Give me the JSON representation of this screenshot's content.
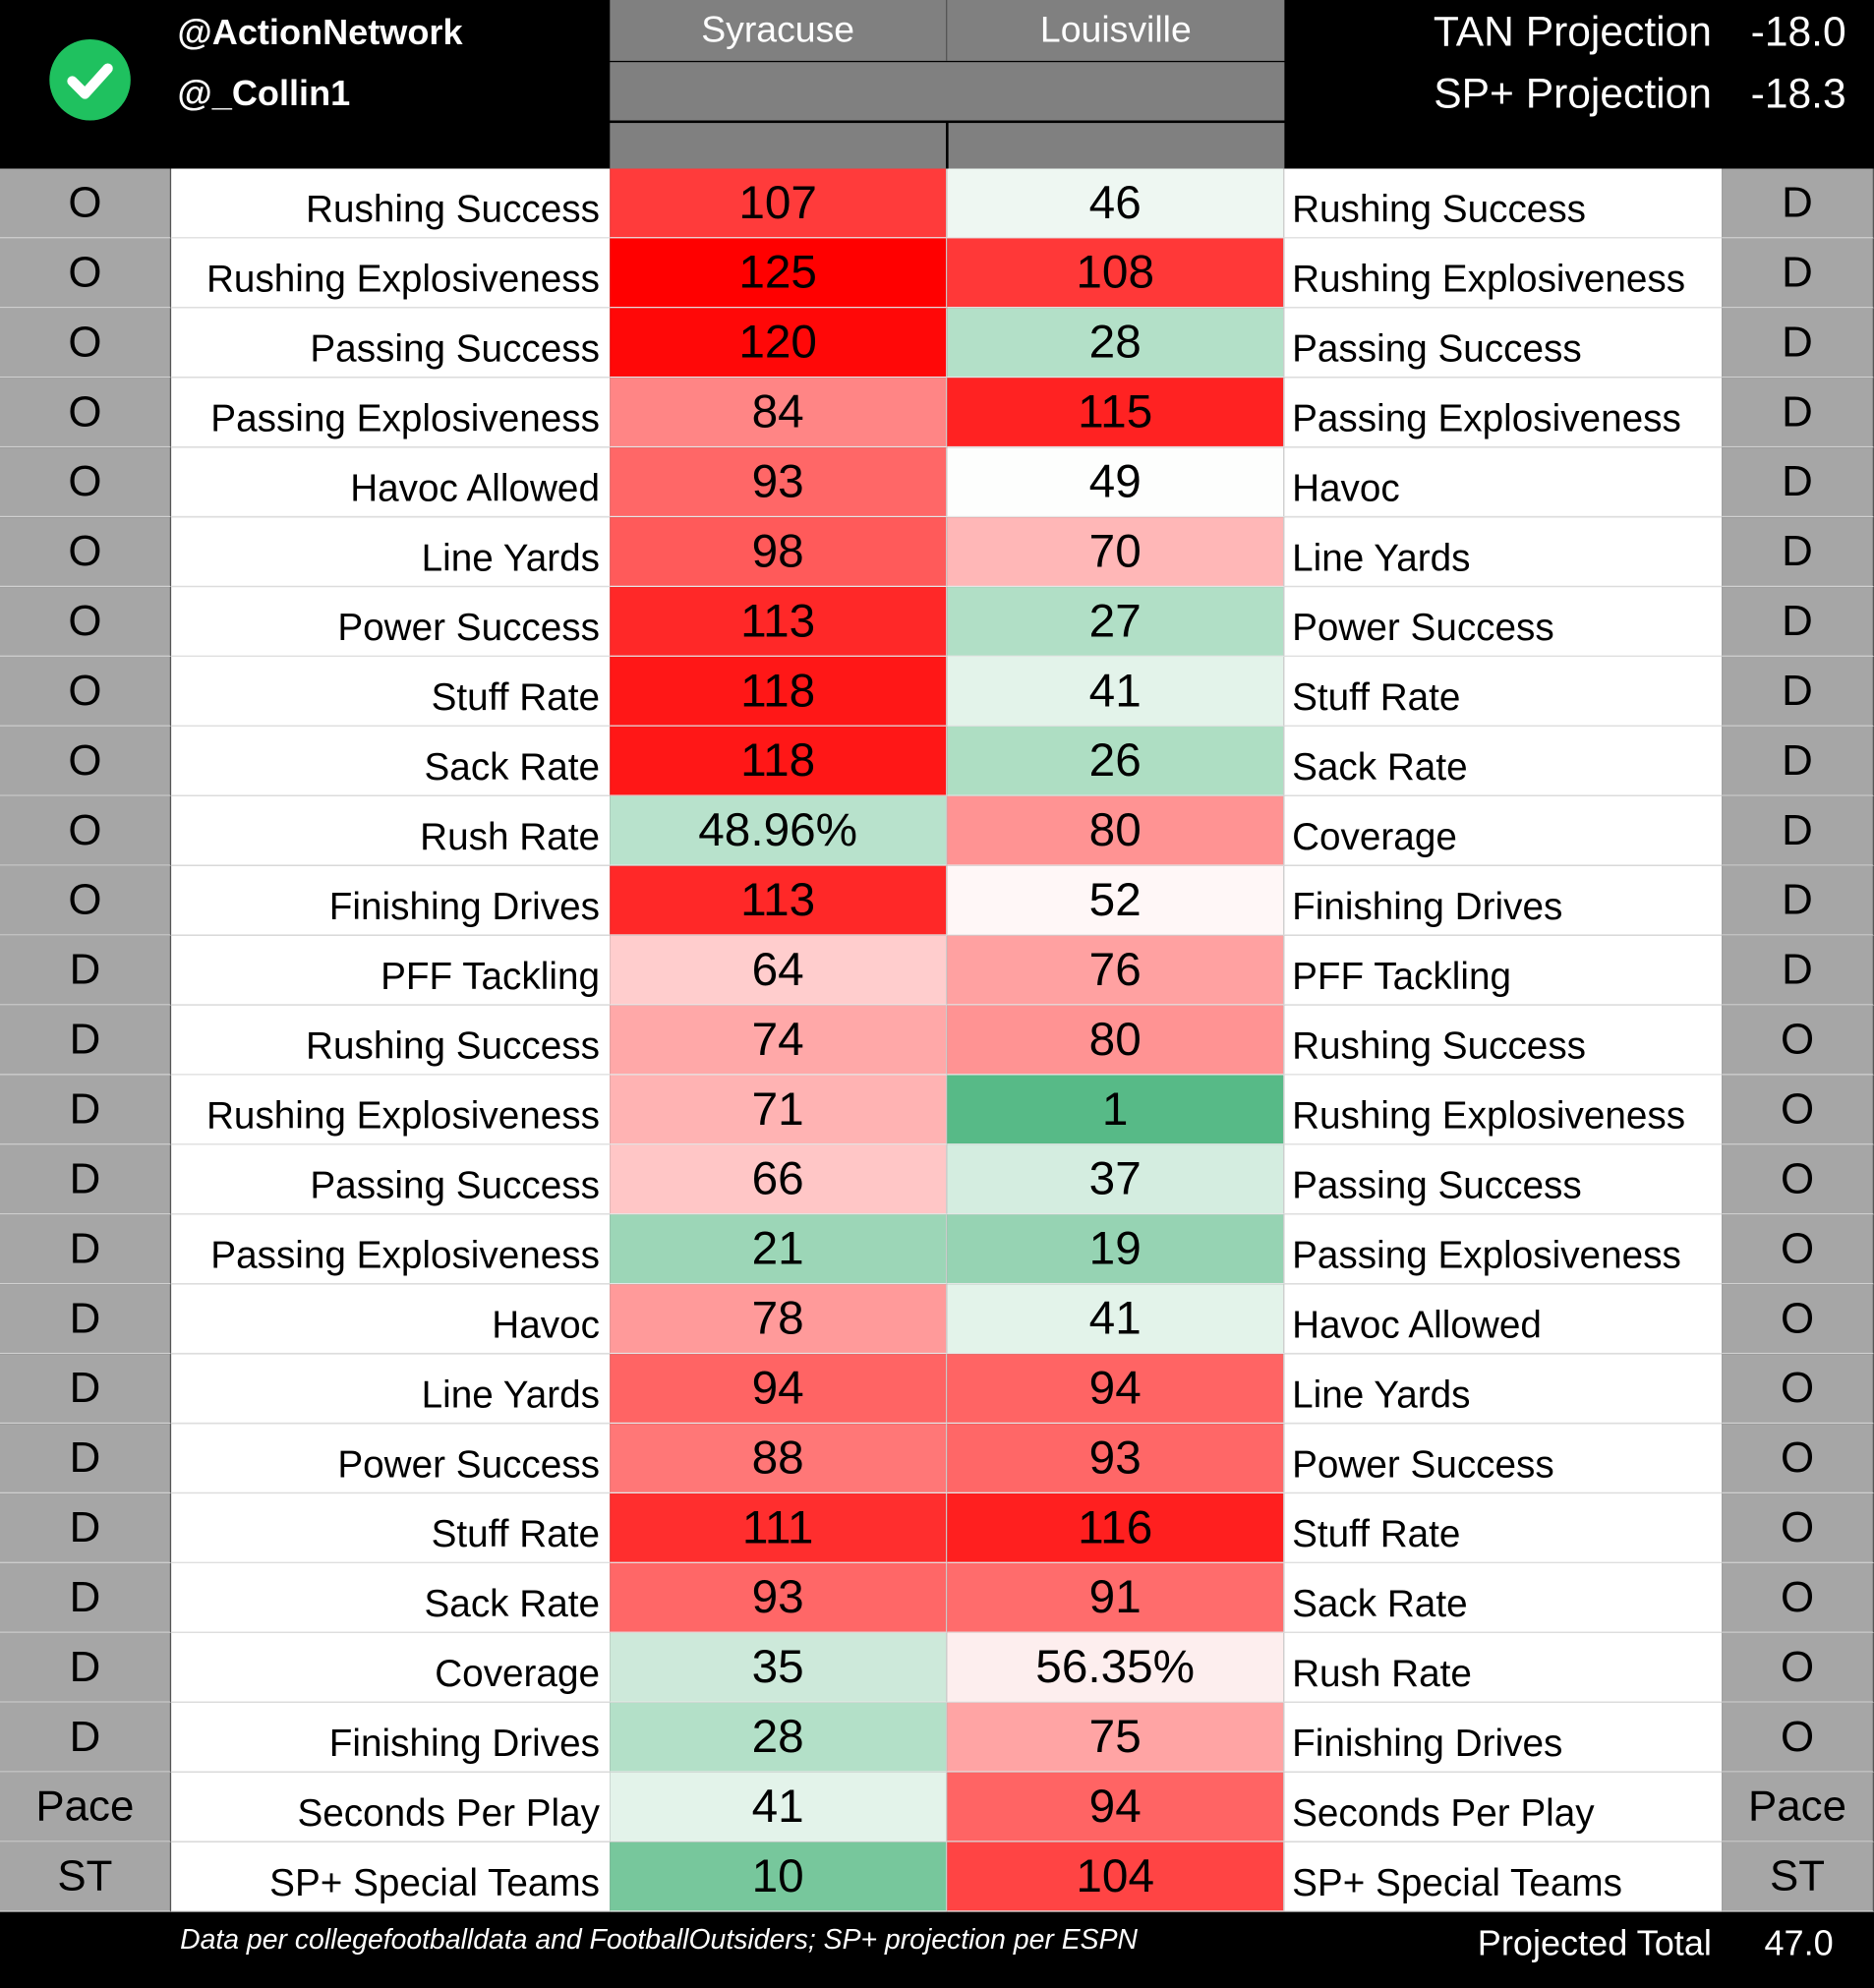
{
  "header": {
    "handles": [
      "@ActionNetwork",
      "@_Collin1"
    ],
    "teams": [
      "Syracuse",
      "Louisville"
    ],
    "projections": [
      {
        "label": "TAN Projection",
        "value": "-18.0"
      },
      {
        "label": "SP+ Projection",
        "value": "-18.3"
      }
    ]
  },
  "rows": [
    {
      "left_side": "O",
      "left_label": "Rushing Success",
      "syracuse": "107",
      "louisville": "46",
      "right_label": "Rushing Success",
      "right_side": "D",
      "colors": [
        "#ff3b3b",
        "#eef7f2"
      ]
    },
    {
      "left_side": "O",
      "left_label": "Rushing Explosiveness",
      "syracuse": "125",
      "louisville": "108",
      "right_label": "Rushing Explosiveness",
      "right_side": "D",
      "colors": [
        "#ff0000",
        "#ff3838"
      ]
    },
    {
      "left_side": "O",
      "left_label": "Passing Success",
      "syracuse": "120",
      "louisville": "28",
      "right_label": "Passing Success",
      "right_side": "D",
      "colors": [
        "#ff0808",
        "#b3e0c8"
      ]
    },
    {
      "left_side": "O",
      "left_label": "Passing Explosiveness",
      "syracuse": "84",
      "louisville": "115",
      "right_label": "Passing Explosiveness",
      "right_side": "D",
      "colors": [
        "#ff8585",
        "#ff2222"
      ]
    },
    {
      "left_side": "O",
      "left_label": "Havoc Allowed",
      "syracuse": "93",
      "louisville": "49",
      "right_label": "Havoc",
      "right_side": "D",
      "colors": [
        "#ff6767",
        "#fdfefd"
      ]
    },
    {
      "left_side": "O",
      "left_label": "Line Yards",
      "syracuse": "98",
      "louisville": "70",
      "right_label": "Line Yards",
      "right_side": "D",
      "colors": [
        "#ff5a5a",
        "#ffb7b7"
      ]
    },
    {
      "left_side": "O",
      "left_label": "Power Success",
      "syracuse": "113",
      "louisville": "27",
      "right_label": "Power Success",
      "right_side": "D",
      "colors": [
        "#ff2828",
        "#b1dfc6"
      ]
    },
    {
      "left_side": "O",
      "left_label": "Stuff Rate",
      "syracuse": "118",
      "louisville": "41",
      "right_label": "Stuff Rate",
      "right_side": "D",
      "colors": [
        "#ff1717",
        "#e3f3ea"
      ]
    },
    {
      "left_side": "O",
      "left_label": "Sack Rate",
      "syracuse": "118",
      "louisville": "26",
      "right_label": "Sack Rate",
      "right_side": "D",
      "colors": [
        "#ff1717",
        "#aedec3"
      ]
    },
    {
      "left_side": "O",
      "left_label": "Rush Rate",
      "syracuse": "48.96%",
      "louisville": "80",
      "right_label": "Coverage",
      "right_side": "D",
      "colors": [
        "#b8e2cc",
        "#ff9393"
      ]
    },
    {
      "left_side": "O",
      "left_label": "Finishing Drives",
      "syracuse": "113",
      "louisville": "52",
      "right_label": "Finishing Drives",
      "right_side": "D",
      "colors": [
        "#ff2828",
        "#fff7f7"
      ]
    },
    {
      "left_side": "D",
      "left_label": "PFF Tackling",
      "syracuse": "64",
      "louisville": "76",
      "right_label": "PFF Tackling",
      "right_side": "D",
      "colors": [
        "#ffcdcd",
        "#ffa1a1"
      ]
    },
    {
      "left_side": "D",
      "left_label": "Rushing Success",
      "syracuse": "74",
      "louisville": "80",
      "right_label": "Rushing Success",
      "right_side": "O",
      "colors": [
        "#ffa8a8",
        "#ff9393"
      ]
    },
    {
      "left_side": "D",
      "left_label": "Rushing Explosiveness",
      "syracuse": "71",
      "louisville": "1",
      "right_label": "Rushing Explosiveness",
      "right_side": "O",
      "colors": [
        "#ffb3b3",
        "#57ba87"
      ]
    },
    {
      "left_side": "D",
      "left_label": "Passing Success",
      "syracuse": "66",
      "louisville": "37",
      "right_label": "Passing Success",
      "right_side": "O",
      "colors": [
        "#ffc6c6",
        "#d4ede0"
      ]
    },
    {
      "left_side": "D",
      "left_label": "Passing Explosiveness",
      "syracuse": "21",
      "louisville": "19",
      "right_label": "Passing Explosiveness",
      "right_side": "O",
      "colors": [
        "#9cd6b7",
        "#96d3b3"
      ]
    },
    {
      "left_side": "D",
      "left_label": "Havoc",
      "syracuse": "78",
      "louisville": "41",
      "right_label": "Havoc Allowed",
      "right_side": "O",
      "colors": [
        "#ff9a9a",
        "#e3f3ea"
      ]
    },
    {
      "left_side": "D",
      "left_label": "Line Yards",
      "syracuse": "94",
      "louisville": "94",
      "right_label": "Line Yards",
      "right_side": "O",
      "colors": [
        "#ff6464",
        "#ff6464"
      ]
    },
    {
      "left_side": "D",
      "left_label": "Power Success",
      "syracuse": "88",
      "louisville": "93",
      "right_label": "Power Success",
      "right_side": "O",
      "colors": [
        "#ff7777",
        "#ff6767"
      ]
    },
    {
      "left_side": "D",
      "left_label": "Stuff Rate",
      "syracuse": "111",
      "louisville": "116",
      "right_label": "Stuff Rate",
      "right_side": "O",
      "colors": [
        "#ff2e2e",
        "#ff1f1f"
      ]
    },
    {
      "left_side": "D",
      "left_label": "Sack Rate",
      "syracuse": "93",
      "louisville": "91",
      "right_label": "Sack Rate",
      "right_side": "O",
      "colors": [
        "#ff6767",
        "#ff6c6c"
      ]
    },
    {
      "left_side": "D",
      "left_label": "Coverage",
      "syracuse": "35",
      "louisville": "56.35%",
      "right_label": "Rush Rate",
      "right_side": "O",
      "colors": [
        "#cde9da",
        "#fdeeee"
      ]
    },
    {
      "left_side": "D",
      "left_label": "Finishing Drives",
      "syracuse": "28",
      "louisville": "75",
      "right_label": "Finishing Drives",
      "right_side": "O",
      "colors": [
        "#b3e0c8",
        "#ffa4a4"
      ]
    },
    {
      "left_side": "Pace",
      "left_label": "Seconds Per Play",
      "syracuse": "41",
      "louisville": "94",
      "right_label": "Seconds Per Play",
      "right_side": "Pace",
      "colors": [
        "#e3f3ea",
        "#ff6464"
      ]
    },
    {
      "left_side": "ST",
      "left_label": "SP+ Special Teams",
      "syracuse": "10",
      "louisville": "104",
      "right_label": "SP+ Special Teams",
      "right_side": "ST",
      "colors": [
        "#77c79c",
        "#ff4444"
      ]
    }
  ],
  "footer": {
    "note": "Data per collegefootballdata and FootballOutsiders; SP+ projection per ESPN",
    "total_label": "Projected Total",
    "total_value": "47.0"
  }
}
